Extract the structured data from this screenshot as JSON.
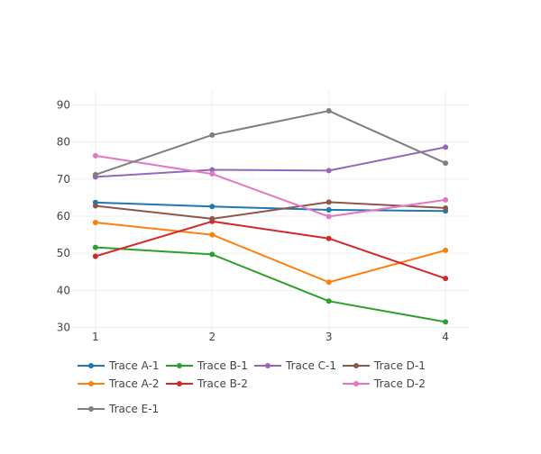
{
  "chart_data": {
    "type": "line",
    "x": [
      1,
      2,
      3,
      4
    ],
    "xlim": [
      0.8,
      4.2
    ],
    "ylim": [
      26,
      94
    ],
    "xticks": [
      1,
      2,
      3,
      4
    ],
    "yticks": [
      30,
      40,
      50,
      60,
      70,
      80,
      90
    ],
    "grid": true,
    "legend_position": "bottom",
    "series": [
      {
        "name": "Trace A-1",
        "color": "#1f77b4",
        "values": [
          63.7,
          62.6,
          61.7,
          61.4
        ]
      },
      {
        "name": "Trace A-2",
        "color": "#ff7f0e",
        "values": [
          58.3,
          55.0,
          42.2,
          50.8
        ]
      },
      {
        "name": "Trace B-1",
        "color": "#2ca02c",
        "values": [
          51.6,
          49.7,
          37.1,
          31.5
        ]
      },
      {
        "name": "Trace B-2",
        "color": "#d62728",
        "values": [
          49.2,
          58.6,
          54.0,
          43.2
        ]
      },
      {
        "name": "Trace C-1",
        "color": "#9467bd",
        "values": [
          70.6,
          72.5,
          72.3,
          78.6
        ]
      },
      {
        "name": "Trace D-1",
        "color": "#8c564b",
        "values": [
          62.8,
          59.3,
          63.8,
          62.2
        ]
      },
      {
        "name": "Trace D-2",
        "color": "#e377c2",
        "values": [
          76.3,
          71.4,
          59.9,
          64.4
        ]
      },
      {
        "name": "Trace E-1",
        "color": "#7f7f7f",
        "values": [
          71.2,
          81.9,
          88.4,
          74.3
        ]
      }
    ]
  }
}
